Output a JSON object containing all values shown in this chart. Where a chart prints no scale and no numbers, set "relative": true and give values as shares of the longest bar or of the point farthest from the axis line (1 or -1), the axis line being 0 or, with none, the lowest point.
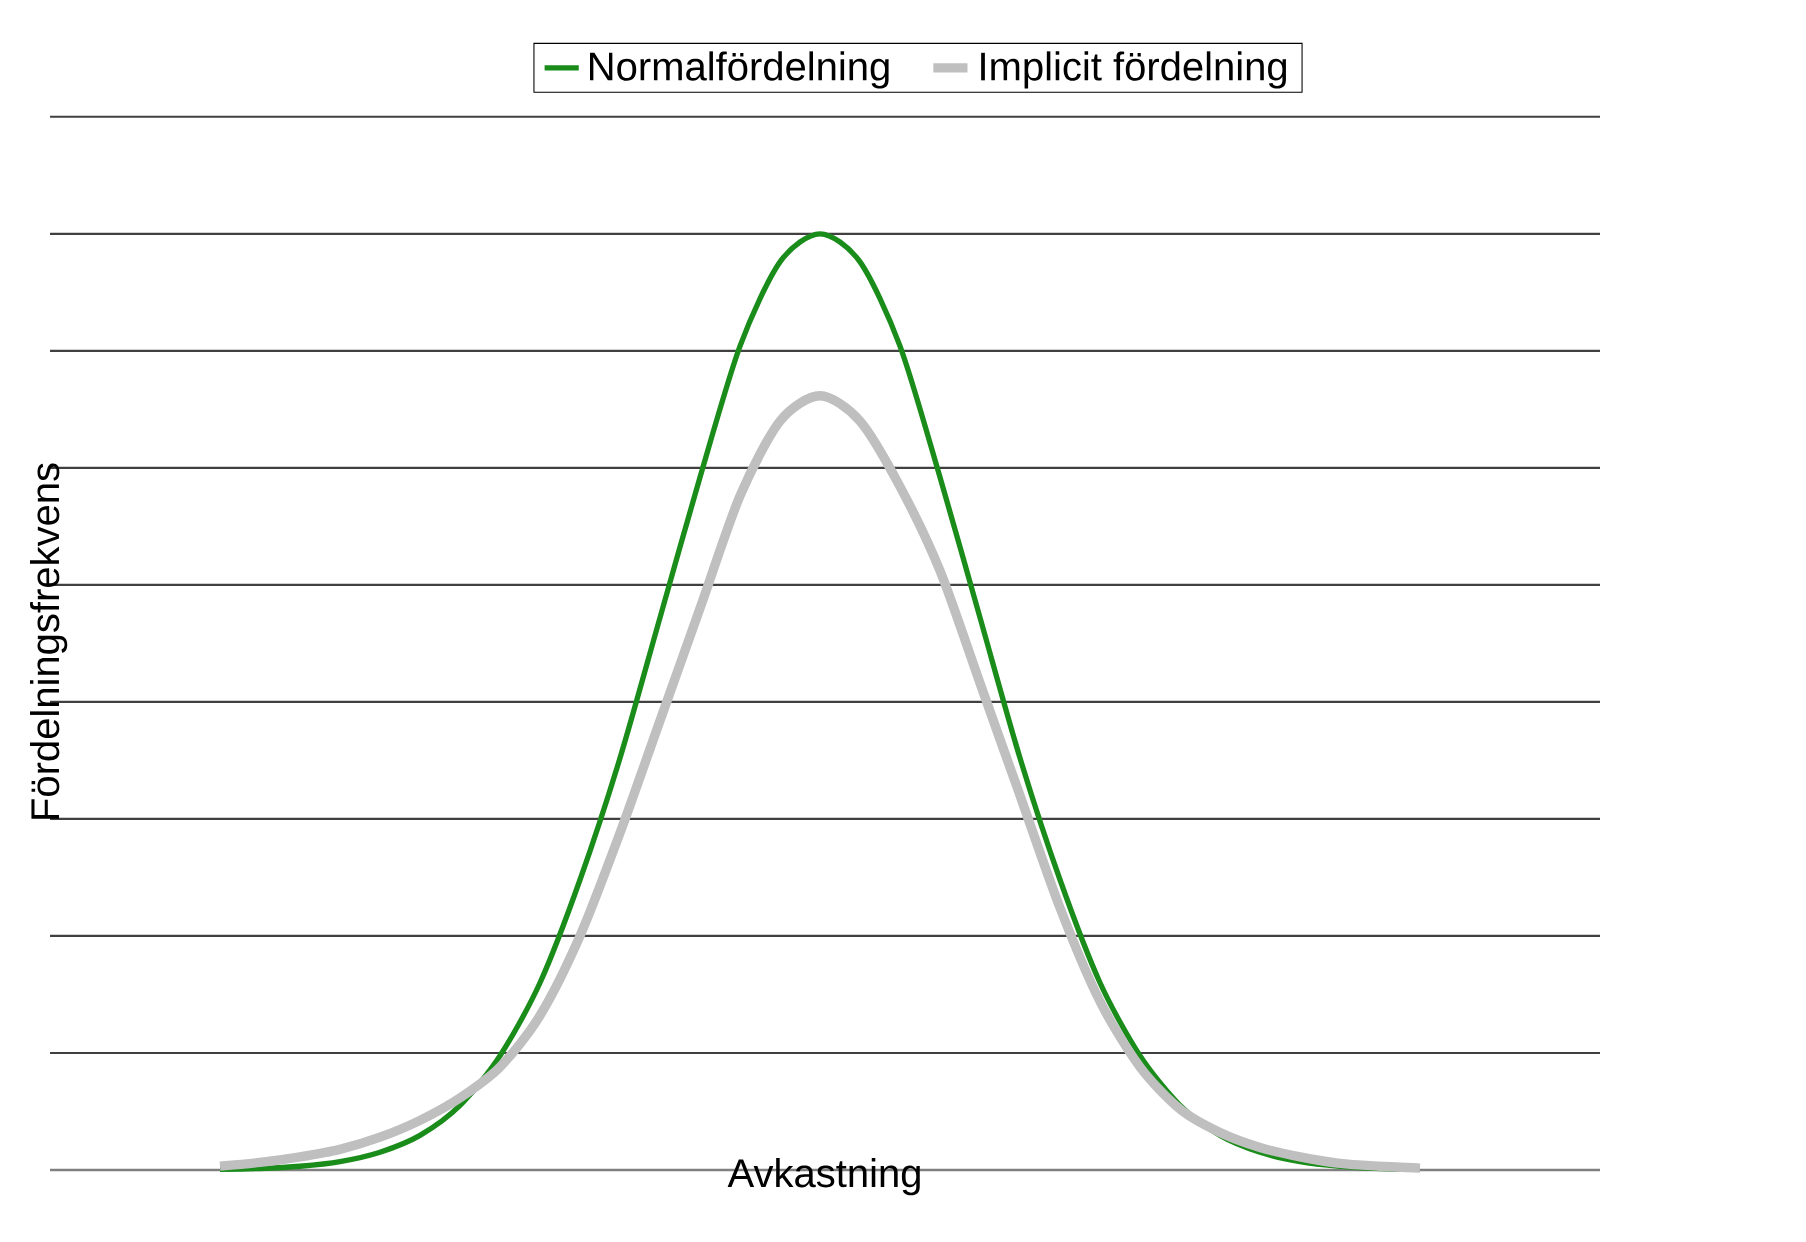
{
  "chart_data": {
    "type": "line",
    "relative": true,
    "xlabel": "Avkastning",
    "ylabel": "Fördelningsfrekvens",
    "grid": "y",
    "legend": "top",
    "marker": "none",
    "line_style": "solid",
    "categories": [
      null,
      null,
      null,
      null,
      null,
      null,
      null,
      null,
      null,
      null,
      null,
      null,
      null,
      null,
      null,
      null,
      null,
      null,
      null,
      null,
      null,
      null,
      null,
      null,
      null,
      null,
      null,
      null,
      null,
      null,
      null
    ],
    "series": [
      {
        "name": "Normalfördelning",
        "color": "#1a8c1a",
        "values": [
          0.0006,
          0.0016,
          0.004,
          0.009,
          0.019,
          0.037,
          0.069,
          0.122,
          0.2,
          0.31,
          0.44,
          0.59,
          0.74,
          0.88,
          0.97,
          1,
          0.97,
          0.88,
          0.74,
          0.59,
          0.44,
          0.31,
          0.2,
          0.122,
          0.069,
          0.037,
          0.019,
          0.009,
          0.004,
          0.0016,
          0.0006
        ]
      },
      {
        "name": "Implicit fördelning",
        "color": "#bfbfbf",
        "values": [
          0.004,
          0.008,
          0.014,
          0.022,
          0.035,
          0.053,
          0.077,
          0.11,
          0.165,
          0.25,
          0.36,
          0.48,
          0.6,
          0.72,
          0.8,
          0.827,
          0.8,
          0.73,
          0.64,
          0.52,
          0.4,
          0.28,
          0.18,
          0.11,
          0.065,
          0.04,
          0.024,
          0.014,
          0.007,
          0.004,
          0.002
        ]
      }
    ]
  }
}
